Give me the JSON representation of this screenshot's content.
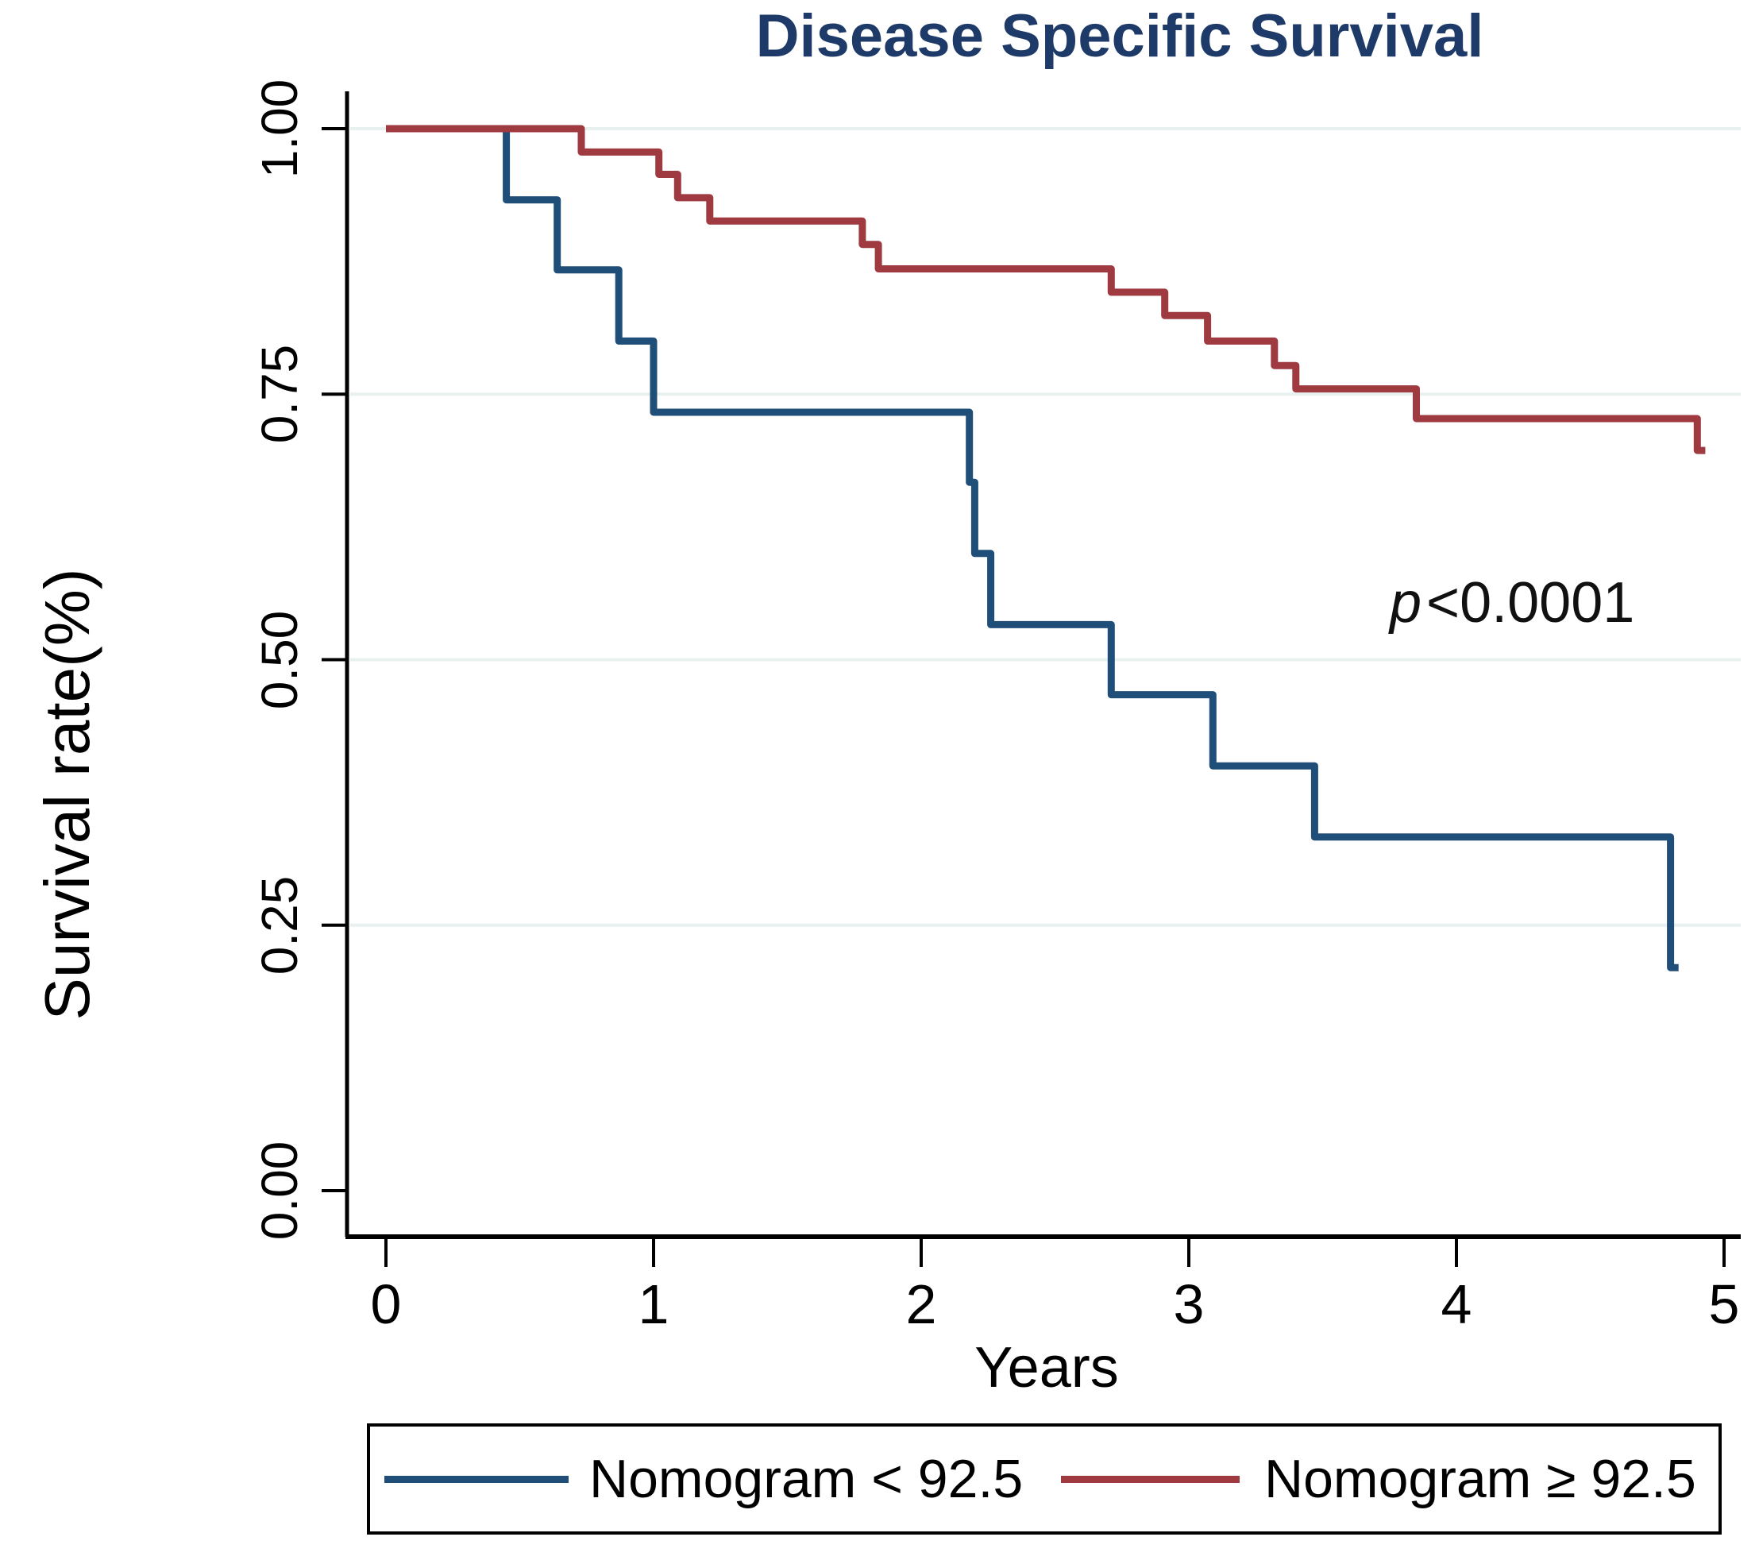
{
  "title": "Disease Specific Survival",
  "title_color": "#1e3a68",
  "p_annotation": {
    "prefix": "p",
    "text": "<0.0001"
  },
  "axes": {
    "x_label": "Years",
    "y_label": "Survival rate(%)",
    "x_tick_labels": [
      "0",
      "1",
      "2",
      "3",
      "4",
      "5"
    ],
    "y_tick_labels": [
      "1.00",
      "0.75",
      "0.50",
      "0.25",
      "0.00"
    ]
  },
  "legend": {
    "items": [
      {
        "label": "Nomogram < 92.5",
        "color": "#1f4e79"
      },
      {
        "label": "Nomogram ≥ 92.5",
        "color": "#9e3a40"
      }
    ]
  },
  "chart_data": {
    "type": "line",
    "subtype": "kaplan-meier-step",
    "title": "Disease Specific Survival",
    "xlabel": "Years",
    "ylabel": "Survival rate(%)",
    "xlim": [
      0,
      5
    ],
    "ylim": [
      0,
      1.0
    ],
    "x_ticks": [
      0,
      1,
      2,
      3,
      4,
      5
    ],
    "y_ticks": [
      1.0,
      0.75,
      0.5,
      0.25,
      0.0
    ],
    "grid": "horizontal gridlines at 0.25, 0.50, 0.75, 1.00",
    "legend_position": "bottom",
    "annotation": "p<0.0001",
    "colors": {
      "gridline": "#e8f1ef",
      "axis": "#000000"
    },
    "series": [
      {
        "name": "Nomogram < 92.5",
        "color": "#1f4e79",
        "points": [
          [
            0,
            1.0
          ],
          [
            0.45,
            1.0
          ],
          [
            0.45,
            0.933
          ],
          [
            0.64,
            0.933
          ],
          [
            0.64,
            0.867
          ],
          [
            0.87,
            0.867
          ],
          [
            0.87,
            0.8
          ],
          [
            1.0,
            0.8
          ],
          [
            1.0,
            0.733
          ],
          [
            2.18,
            0.733
          ],
          [
            2.18,
            0.667
          ],
          [
            2.2,
            0.667
          ],
          [
            2.2,
            0.6
          ],
          [
            2.26,
            0.6
          ],
          [
            2.26,
            0.533
          ],
          [
            2.71,
            0.533
          ],
          [
            2.71,
            0.467
          ],
          [
            3.09,
            0.467
          ],
          [
            3.09,
            0.4
          ],
          [
            3.47,
            0.4
          ],
          [
            3.47,
            0.333
          ],
          [
            4.8,
            0.333
          ],
          [
            4.8,
            0.21
          ],
          [
            4.83,
            0.21
          ]
        ]
      },
      {
        "name": "Nomogram ≥ 92.5",
        "color": "#9e3a40",
        "points": [
          [
            0,
            1.0
          ],
          [
            0.73,
            1.0
          ],
          [
            0.73,
            0.978
          ],
          [
            1.02,
            0.978
          ],
          [
            1.02,
            0.957
          ],
          [
            1.09,
            0.957
          ],
          [
            1.09,
            0.935
          ],
          [
            1.21,
            0.935
          ],
          [
            1.21,
            0.913
          ],
          [
            1.78,
            0.913
          ],
          [
            1.78,
            0.891
          ],
          [
            1.84,
            0.891
          ],
          [
            1.84,
            0.868
          ],
          [
            2.71,
            0.868
          ],
          [
            2.71,
            0.846
          ],
          [
            2.91,
            0.846
          ],
          [
            2.91,
            0.824
          ],
          [
            3.07,
            0.824
          ],
          [
            3.07,
            0.8
          ],
          [
            3.32,
            0.8
          ],
          [
            3.32,
            0.777
          ],
          [
            3.4,
            0.777
          ],
          [
            3.4,
            0.755
          ],
          [
            3.85,
            0.755
          ],
          [
            3.85,
            0.727
          ],
          [
            4.9,
            0.727
          ],
          [
            4.9,
            0.697
          ],
          [
            4.93,
            0.697
          ]
        ]
      }
    ]
  }
}
